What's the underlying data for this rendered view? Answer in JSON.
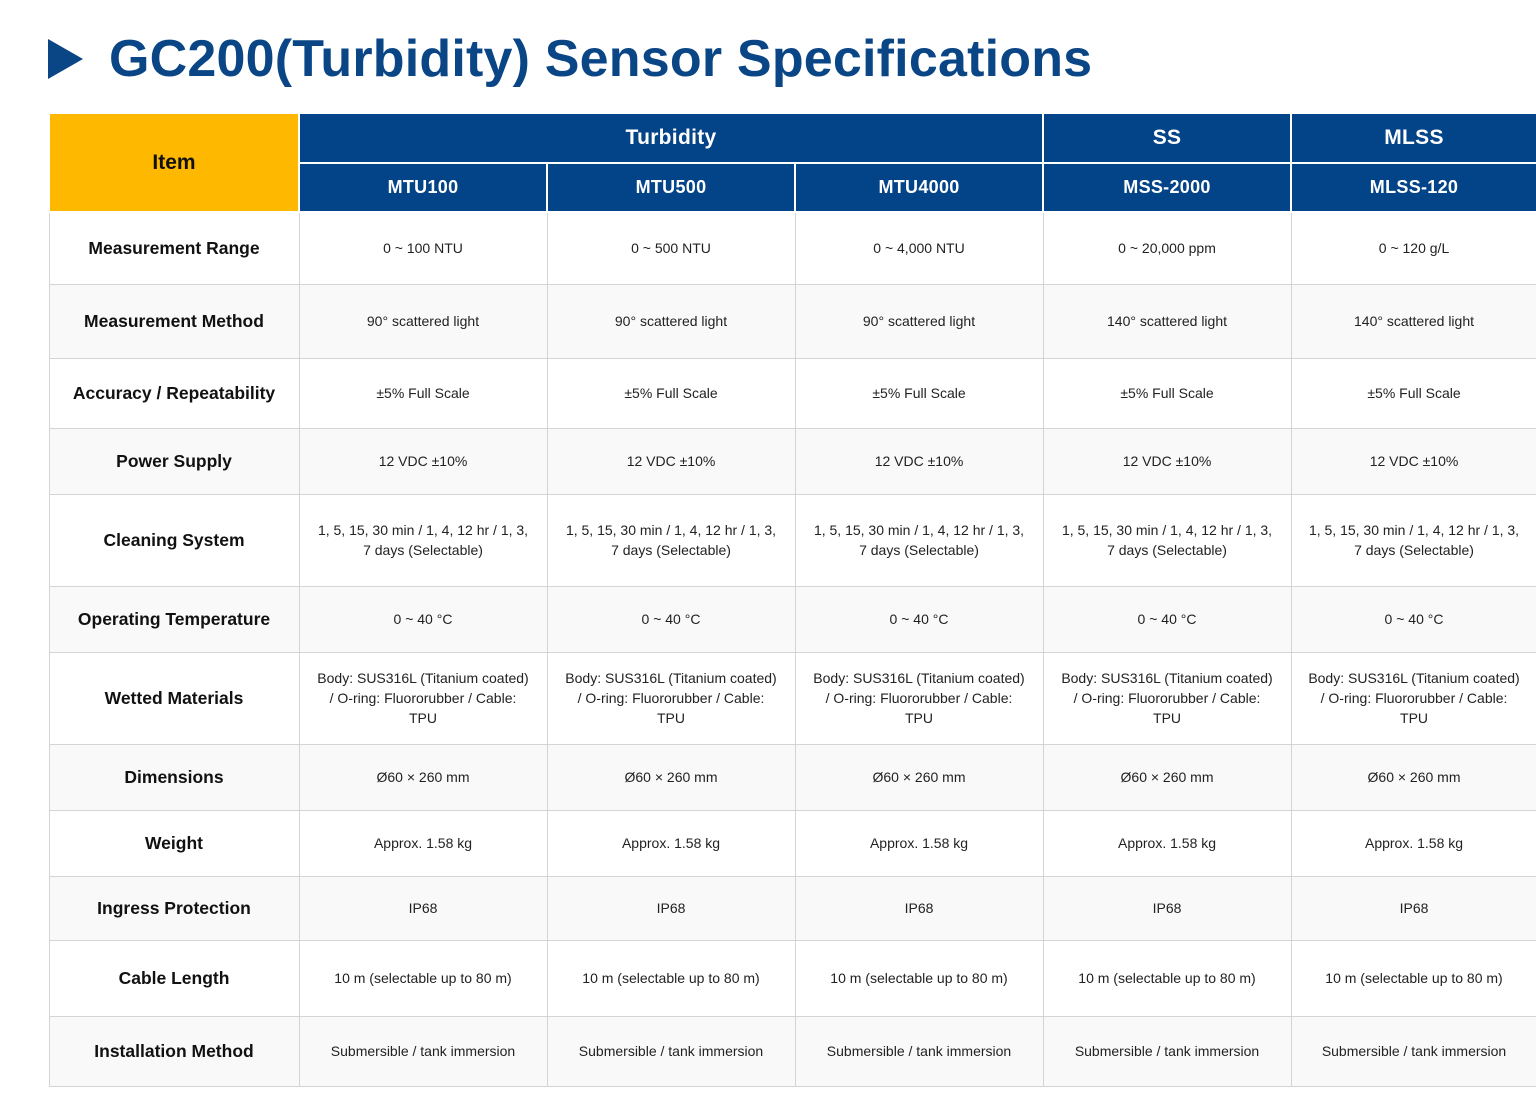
{
  "title": "GC200(Turbidity) Sensor Specifications",
  "header": {
    "item_label": "Item",
    "groups": [
      "Turbidity",
      "SS",
      "MLSS"
    ],
    "models": [
      "MTU100",
      "MTU500",
      "MTU4000",
      "MSS-2000",
      "MLSS-120"
    ]
  },
  "rows": [
    {
      "label": "Measurement Range",
      "values": [
        "0 ~ 100 NTU",
        "0 ~ 500 NTU",
        "0 ~ 4,000 NTU",
        "0 ~ 20,000 ppm",
        "0 ~ 120 g/L"
      ]
    },
    {
      "label": "Measurement Method",
      "values": [
        "90° scattered light",
        "90° scattered light",
        "90° scattered light",
        "140° scattered light",
        "140° scattered light"
      ]
    },
    {
      "label": "Accuracy / Repeatability",
      "values": [
        "±5% Full Scale",
        "±5% Full Scale",
        "±5% Full Scale",
        "±5% Full Scale",
        "±5% Full Scale"
      ]
    },
    {
      "label": "Power Supply",
      "values": [
        "12 VDC ±10%",
        "12 VDC ±10%",
        "12 VDC ±10%",
        "12 VDC ±10%",
        "12 VDC ±10%"
      ]
    },
    {
      "label": "Cleaning System",
      "values": [
        "1, 5, 15, 30 min / 1, 4, 12 hr / 1, 3, 7 days (Selectable)",
        "1, 5, 15, 30 min / 1, 4, 12 hr / 1, 3, 7 days (Selectable)",
        "1, 5, 15, 30 min / 1, 4, 12 hr / 1, 3, 7 days (Selectable)",
        "1, 5, 15, 30 min / 1, 4, 12 hr / 1, 3, 7 days (Selectable)",
        "1, 5, 15, 30 min / 1, 4, 12 hr / 1, 3, 7 days (Selectable)"
      ]
    },
    {
      "label": "Operating Temperature",
      "values": [
        "0 ~ 40 °C",
        "0 ~ 40 °C",
        "0 ~ 40 °C",
        "0 ~ 40 °C",
        "0 ~ 40 °C"
      ]
    },
    {
      "label": "Wetted Materials",
      "values": [
        "Body: SUS316L (Titanium coated) / O-ring: Fluororubber / Cable: TPU",
        "Body: SUS316L (Titanium coated) / O-ring: Fluororubber / Cable: TPU",
        "Body: SUS316L (Titanium coated) / O-ring: Fluororubber / Cable: TPU",
        "Body: SUS316L (Titanium coated) / O-ring: Fluororubber / Cable: TPU",
        "Body: SUS316L (Titanium coated) / O-ring: Fluororubber / Cable: TPU"
      ]
    },
    {
      "label": "Dimensions",
      "values": [
        "Ø60 × 260 mm",
        "Ø60 × 260 mm",
        "Ø60 × 260 mm",
        "Ø60 × 260 mm",
        "Ø60 × 260 mm"
      ]
    },
    {
      "label": "Weight",
      "values": [
        "Approx. 1.58 kg",
        "Approx. 1.58 kg",
        "Approx. 1.58 kg",
        "Approx. 1.58 kg",
        "Approx. 1.58 kg"
      ]
    },
    {
      "label": "Ingress Protection",
      "values": [
        "IP68",
        "IP68",
        "IP68",
        "IP68",
        "IP68"
      ]
    },
    {
      "label": "Cable Length",
      "values": [
        "10 m (selectable up to 80 m)",
        "10 m (selectable up to 80 m)",
        "10 m (selectable up to 80 m)",
        "10 m (selectable up to 80 m)",
        "10 m (selectable up to 80 m)"
      ]
    },
    {
      "label": "Installation Method",
      "values": [
        "Submersible / tank immersion",
        "Submersible / tank immersion",
        "Submersible / tank immersion",
        "Submersible / tank immersion",
        "Submersible / tank immersion"
      ]
    }
  ]
}
